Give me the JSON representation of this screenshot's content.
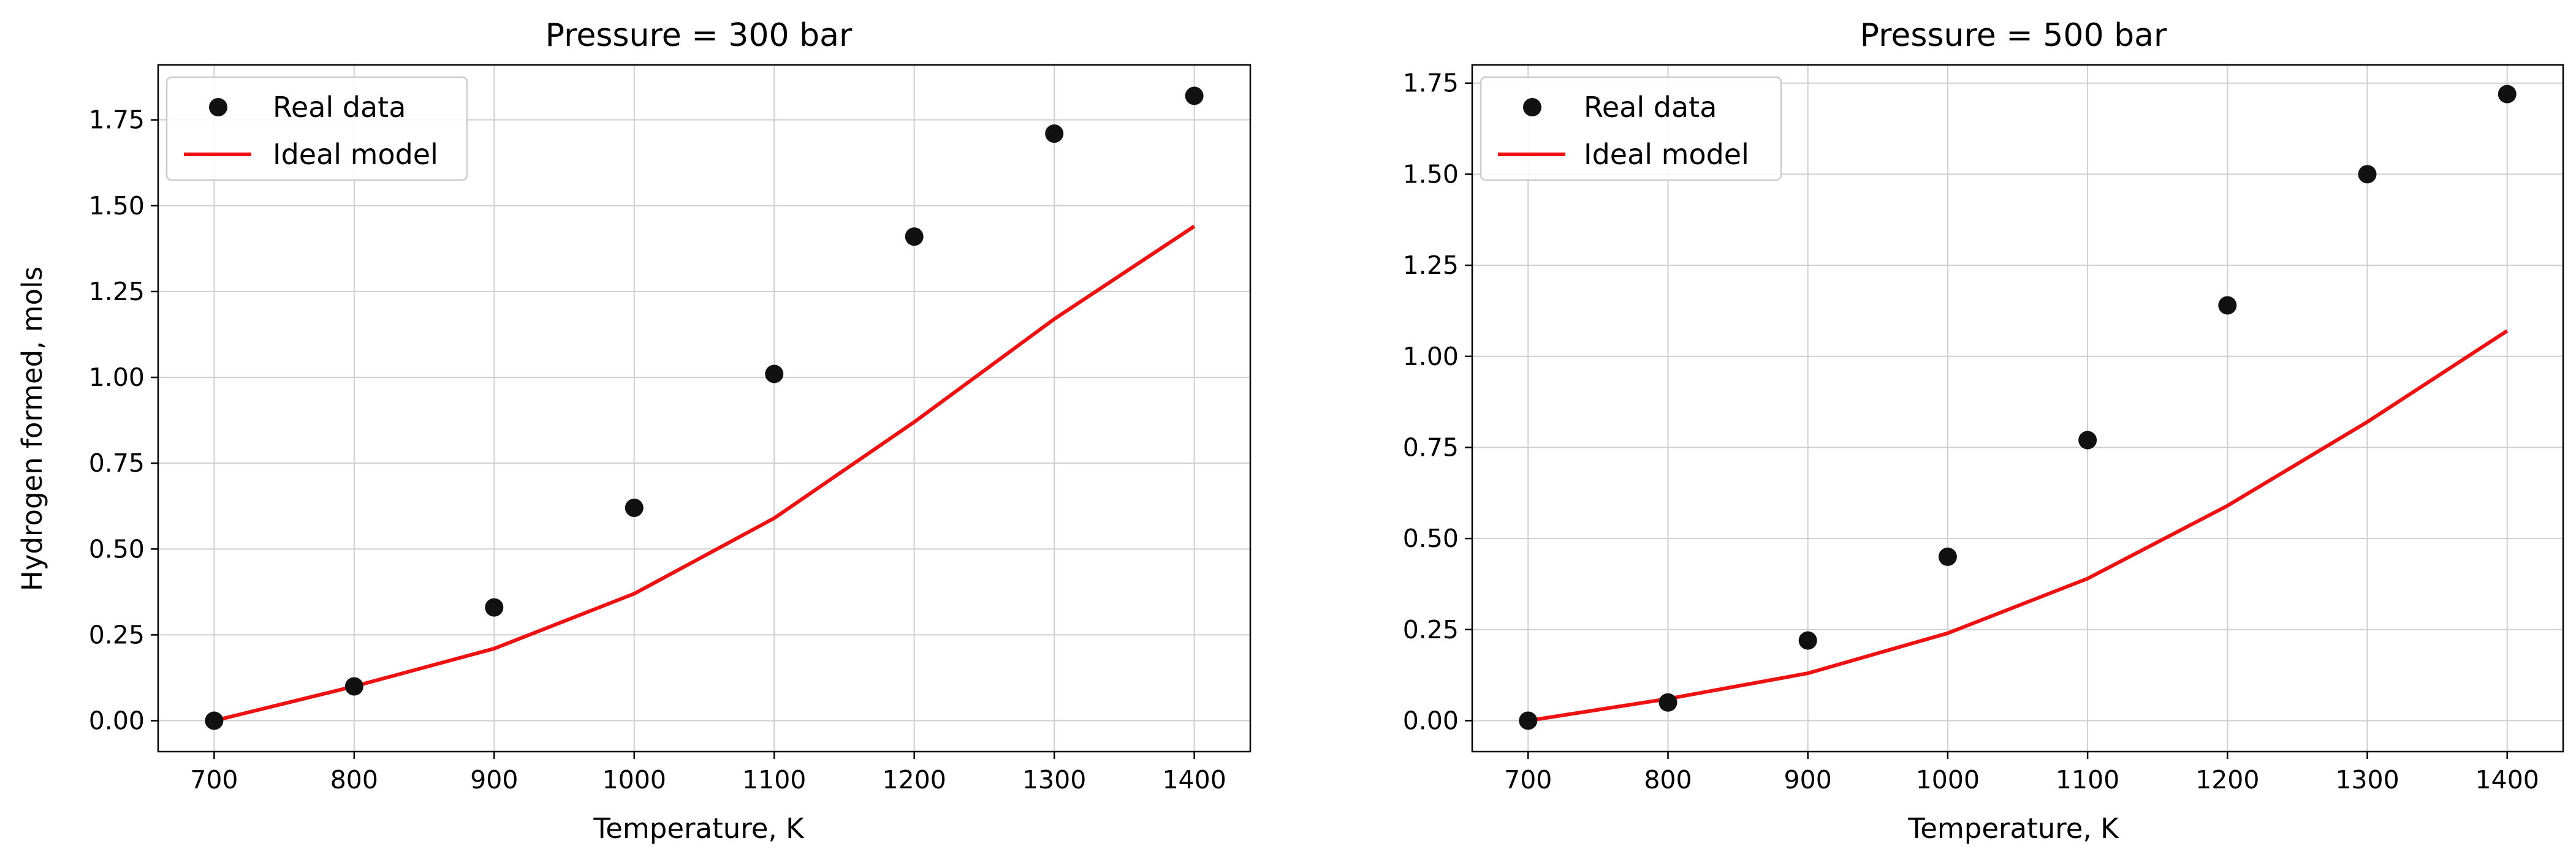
{
  "chart_data": [
    {
      "type": "line",
      "title": "Pressure = 300 bar",
      "xlabel": "Temperature, K",
      "ylabel": "Hydrogen formed, mols",
      "xlim": [
        660,
        1440
      ],
      "ylim": [
        -0.09,
        1.91
      ],
      "xticks": [
        700,
        800,
        900,
        1000,
        1100,
        1200,
        1300,
        1400
      ],
      "yticks": [
        0.0,
        0.25,
        0.5,
        0.75,
        1.0,
        1.25,
        1.5,
        1.75
      ],
      "ytick_labels": [
        "0.00",
        "0.25",
        "0.50",
        "0.75",
        "1.00",
        "1.25",
        "1.50",
        "1.75"
      ],
      "grid": true,
      "legend": "upper left",
      "series": [
        {
          "name": "Real data",
          "kind": "scatter",
          "color": "#111111",
          "x": [
            700,
            800,
            900,
            1000,
            1100,
            1200,
            1300,
            1400
          ],
          "y": [
            0.0,
            0.1,
            0.33,
            0.62,
            1.01,
            1.41,
            1.71,
            1.82
          ]
        },
        {
          "name": "Ideal model",
          "kind": "line",
          "color": "#ee1111",
          "x": [
            700,
            800,
            900,
            1000,
            1100,
            1200,
            1300,
            1400
          ],
          "y": [
            0.0,
            0.1,
            0.21,
            0.37,
            0.59,
            0.87,
            1.17,
            1.44
          ]
        }
      ]
    },
    {
      "type": "line",
      "title": "Pressure = 500 bar",
      "xlabel": "Temperature, K",
      "ylabel": "",
      "xlim": [
        660,
        1440
      ],
      "ylim": [
        -0.085,
        1.8
      ],
      "xticks": [
        700,
        800,
        900,
        1000,
        1100,
        1200,
        1300,
        1400
      ],
      "yticks": [
        0.0,
        0.25,
        0.5,
        0.75,
        1.0,
        1.25,
        1.5,
        1.75
      ],
      "ytick_labels": [
        "0.00",
        "0.25",
        "0.50",
        "0.75",
        "1.00",
        "1.25",
        "1.50",
        "1.75"
      ],
      "grid": true,
      "legend": "upper left",
      "series": [
        {
          "name": "Real data",
          "kind": "scatter",
          "color": "#111111",
          "x": [
            700,
            800,
            900,
            1000,
            1100,
            1200,
            1300,
            1400
          ],
          "y": [
            0.0,
            0.05,
            0.22,
            0.45,
            0.77,
            1.14,
            1.5,
            1.72
          ]
        },
        {
          "name": "Ideal model",
          "kind": "line",
          "color": "#ee1111",
          "x": [
            700,
            800,
            900,
            1000,
            1100,
            1200,
            1300,
            1400
          ],
          "y": [
            0.0,
            0.06,
            0.13,
            0.24,
            0.39,
            0.59,
            0.82,
            1.07
          ]
        }
      ]
    }
  ]
}
